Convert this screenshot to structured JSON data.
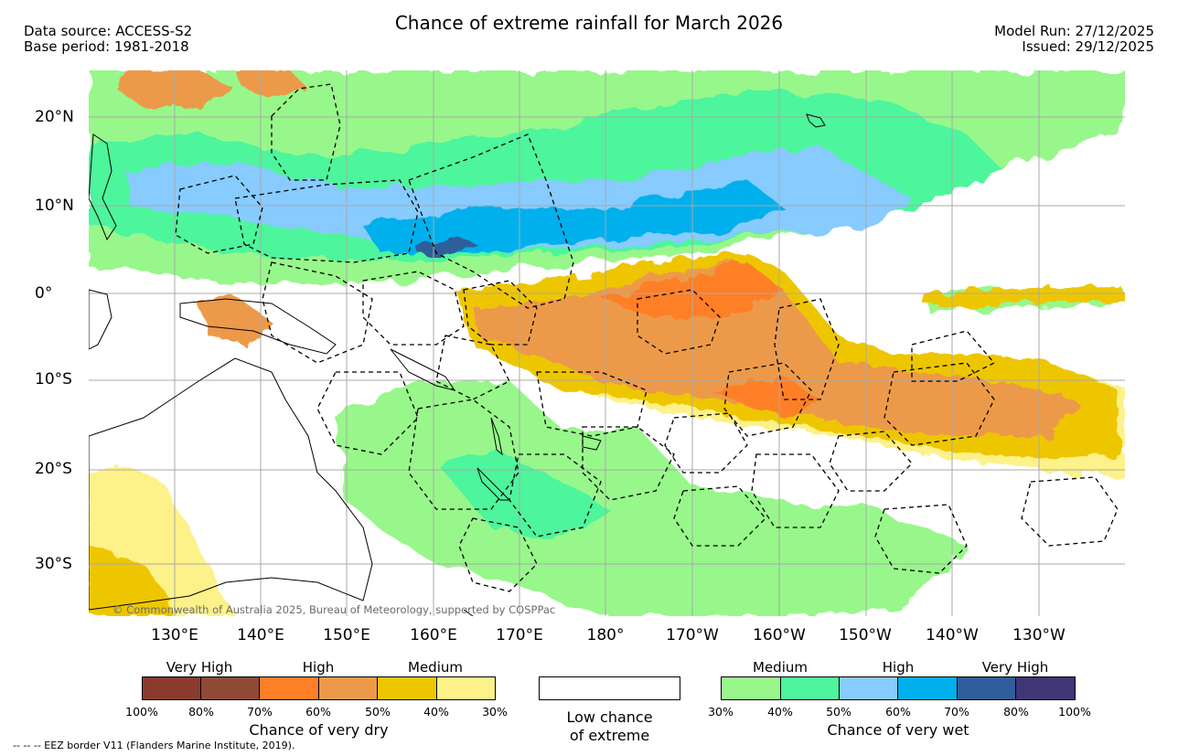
{
  "header": {
    "title": "Chance of extreme rainfall for March 2026",
    "data_source": "Data source: ACCESS-S2",
    "base_period": "Base period: 1981-2018",
    "model_run": "Model Run: 27/12/2025",
    "issued": "Issued: 29/12/2025"
  },
  "map": {
    "copyright": "© Commonwealth of Australia 2025, Bureau of Meteorology, supported by COSPPac",
    "lat_labels": [
      "20°N",
      "10°N",
      "0°",
      "10°S",
      "20°S",
      "30°S"
    ],
    "lon_labels": [
      "130°E",
      "140°E",
      "150°E",
      "160°E",
      "170°E",
      "180°",
      "170°W",
      "160°W",
      "150°W",
      "140°W",
      "130°W"
    ]
  },
  "legend": {
    "dry": {
      "headings": [
        "Very High",
        "High",
        "Medium"
      ],
      "colors": [
        "#8b3a2e",
        "#8f4a36",
        "#ff7f27",
        "#ec9a4a",
        "#eec600",
        "#fdf18a"
      ],
      "ticks": [
        "100%",
        "80%",
        "70%",
        "60%",
        "50%",
        "40%",
        "30%"
      ],
      "caption": "Chance of very dry"
    },
    "low": {
      "caption_line1": "Low chance",
      "caption_line2": "of extreme",
      "color": "#ffffff"
    },
    "wet": {
      "headings": [
        "Medium",
        "High",
        "Very High"
      ],
      "colors": [
        "#98f78b",
        "#4ef59c",
        "#87cbff",
        "#00b0ec",
        "#2f5e9b",
        "#3e3677"
      ],
      "ticks": [
        "30%",
        "40%",
        "50%",
        "60%",
        "70%",
        "80%",
        "100%"
      ],
      "caption": "Chance of very wet"
    }
  },
  "footer": {
    "eez_note": "-- -- -- EEZ border V11 (Flanders Marine Institute, 2019)."
  },
  "colors": {
    "green_light": "#98f78b",
    "green_mid": "#4ef59c",
    "blue_light": "#87cbff",
    "blue_mid": "#00b0ec",
    "blue_dark": "#2f5e9b",
    "yellow_light": "#fdf18a",
    "yellow": "#eec600",
    "orange_light": "#ec9a4a",
    "orange": "#ff7f27",
    "brown": "#8f4a36"
  }
}
